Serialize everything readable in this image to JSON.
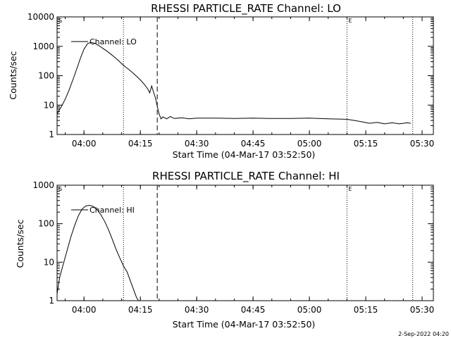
{
  "footer": {
    "date_stamp": "2-Sep-2022 04:20"
  },
  "chart_data": [
    {
      "type": "line",
      "title": "RHESSI PARTICLE_RATE Channel: LO",
      "xlabel": "Start Time (04-Mar-17 03:52:50)",
      "ylabel": "Counts/sec",
      "yscale": "log",
      "ylim": [
        1,
        10000
      ],
      "xlim": [
        "03:52:50",
        "05:33:00"
      ],
      "xtick_labels": [
        "04:00",
        "04:15",
        "04:30",
        "04:45",
        "05:00",
        "05:15",
        "05:30"
      ],
      "ytick_labels": [
        "1",
        "10",
        "100",
        "1000",
        "10000"
      ],
      "grid": false,
      "legend_placement": "top-left",
      "markers": [
        {
          "label": "S",
          "time": "03:52:50",
          "style": "dotted"
        },
        {
          "label": "",
          "time": "04:10:30",
          "style": "dotted"
        },
        {
          "label": "",
          "time": "04:19:30",
          "style": "dashed"
        },
        {
          "label": "E",
          "time": "05:10:00",
          "style": "dotted"
        },
        {
          "label": "",
          "time": "05:27:30",
          "style": "dotted"
        }
      ],
      "series": [
        {
          "name": "Channel: LO",
          "x": [
            "03:52:50",
            "03:54:00",
            "03:55:00",
            "03:56:00",
            "03:57:00",
            "03:58:00",
            "03:59:00",
            "04:00:00",
            "04:01:00",
            "04:02:00",
            "04:03:00",
            "04:04:00",
            "04:05:00",
            "04:06:00",
            "04:07:00",
            "04:08:00",
            "04:09:00",
            "04:10:00",
            "04:11:00",
            "04:12:00",
            "04:13:00",
            "04:14:00",
            "04:15:00",
            "04:16:00",
            "04:17:00",
            "04:17:30",
            "04:18:00",
            "04:18:30",
            "04:19:00",
            "04:19:30",
            "04:20:00",
            "04:20:30",
            "04:21:00",
            "04:22:00",
            "04:23:00",
            "04:24:00",
            "04:26:00",
            "04:28:00",
            "04:30:00",
            "04:35:00",
            "04:40:00",
            "04:45:00",
            "04:50:00",
            "04:55:00",
            "05:00:00",
            "05:05:00",
            "05:10:00",
            "05:12:00",
            "05:14:00",
            "05:16:00",
            "05:18:00",
            "05:20:00",
            "05:22:00",
            "05:24:00",
            "05:26:00",
            "05:27:00"
          ],
          "values": [
            5,
            9,
            16,
            32,
            70,
            160,
            380,
            800,
            1250,
            1350,
            1250,
            1050,
            850,
            700,
            560,
            440,
            340,
            260,
            200,
            160,
            125,
            95,
            72,
            52,
            35,
            26,
            45,
            28,
            18,
            9,
            5,
            3.4,
            4,
            3.4,
            4.1,
            3.5,
            3.7,
            3.4,
            3.6,
            3.6,
            3.5,
            3.6,
            3.5,
            3.5,
            3.6,
            3.4,
            3.3,
            3.0,
            2.7,
            2.4,
            2.6,
            2.3,
            2.5,
            2.3,
            2.5,
            2.4
          ]
        }
      ]
    },
    {
      "type": "line",
      "title": "RHESSI PARTICLE_RATE Channel: HI",
      "xlabel": "Start Time (04-Mar-17 03:52:50)",
      "ylabel": "Counts/sec",
      "yscale": "log",
      "ylim": [
        1,
        1000
      ],
      "xlim": [
        "03:52:50",
        "05:33:00"
      ],
      "xtick_labels": [
        "04:00",
        "04:15",
        "04:30",
        "04:45",
        "05:00",
        "05:15",
        "05:30"
      ],
      "ytick_labels": [
        "1",
        "10",
        "100",
        "1000"
      ],
      "grid": false,
      "legend_placement": "top-left",
      "markers": [
        {
          "label": "S",
          "time": "03:52:50",
          "style": "dotted"
        },
        {
          "label": "",
          "time": "04:10:30",
          "style": "dotted"
        },
        {
          "label": "",
          "time": "04:19:30",
          "style": "dashed"
        },
        {
          "label": "E",
          "time": "05:10:00",
          "style": "dotted"
        },
        {
          "label": "",
          "time": "05:27:30",
          "style": "dotted"
        }
      ],
      "series": [
        {
          "name": "Channel: HI",
          "x": [
            "03:52:50",
            "03:53:30",
            "03:54:30",
            "03:55:30",
            "03:56:30",
            "03:57:30",
            "03:58:30",
            "03:59:30",
            "04:00:30",
            "04:01:30",
            "04:02:30",
            "04:03:30",
            "04:04:30",
            "04:05:30",
            "04:06:30",
            "04:07:30",
            "04:08:30",
            "04:09:30",
            "04:10:30",
            "04:11:30",
            "04:12:00",
            "04:12:30",
            "04:13:00",
            "04:13:30",
            "04:14:00",
            "04:14:30"
          ],
          "values": [
            1.5,
            4,
            9,
            20,
            45,
            90,
            160,
            240,
            290,
            300,
            280,
            230,
            170,
            115,
            70,
            40,
            22,
            13,
            8,
            5.5,
            4,
            3,
            2.2,
            1.6,
            1.2,
            1
          ]
        }
      ]
    }
  ]
}
